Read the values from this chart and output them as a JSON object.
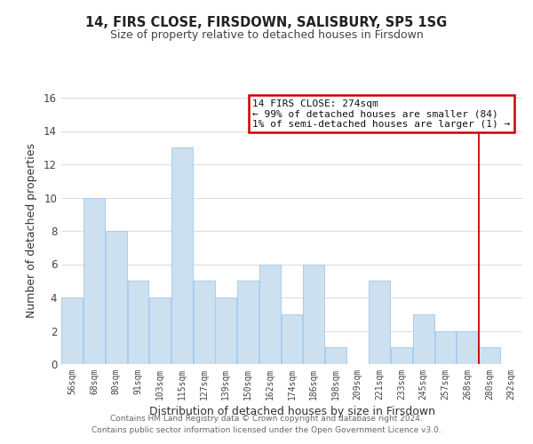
{
  "title": "14, FIRS CLOSE, FIRSDOWN, SALISBURY, SP5 1SG",
  "subtitle": "Size of property relative to detached houses in Firsdown",
  "xlabel": "Distribution of detached houses by size in Firsdown",
  "ylabel": "Number of detached properties",
  "bar_color": "#cce0f0",
  "bar_edge_color": "#aaccee",
  "bins": [
    "56sqm",
    "68sqm",
    "80sqm",
    "91sqm",
    "103sqm",
    "115sqm",
    "127sqm",
    "139sqm",
    "150sqm",
    "162sqm",
    "174sqm",
    "186sqm",
    "198sqm",
    "209sqm",
    "221sqm",
    "233sqm",
    "245sqm",
    "257sqm",
    "268sqm",
    "280sqm",
    "292sqm"
  ],
  "values": [
    4,
    10,
    8,
    5,
    4,
    13,
    5,
    4,
    5,
    6,
    3,
    6,
    1,
    0,
    5,
    1,
    3,
    2,
    2,
    1,
    0
  ],
  "ylim": [
    0,
    16
  ],
  "yticks": [
    0,
    2,
    4,
    6,
    8,
    10,
    12,
    14,
    16
  ],
  "property_line_color": "#cc0000",
  "legend_title": "14 FIRS CLOSE: 274sqm",
  "legend_line1": "← 99% of detached houses are smaller (84)",
  "legend_line2": "1% of semi-detached houses are larger (1) →",
  "legend_box_color": "#ffffff",
  "legend_box_edge": "#cc0000",
  "footer1": "Contains HM Land Registry data © Crown copyright and database right 2024.",
  "footer2": "Contains public sector information licensed under the Open Government Licence v3.0.",
  "grid_color": "#dddddd",
  "figsize": [
    6.0,
    5.0
  ],
  "dpi": 100
}
